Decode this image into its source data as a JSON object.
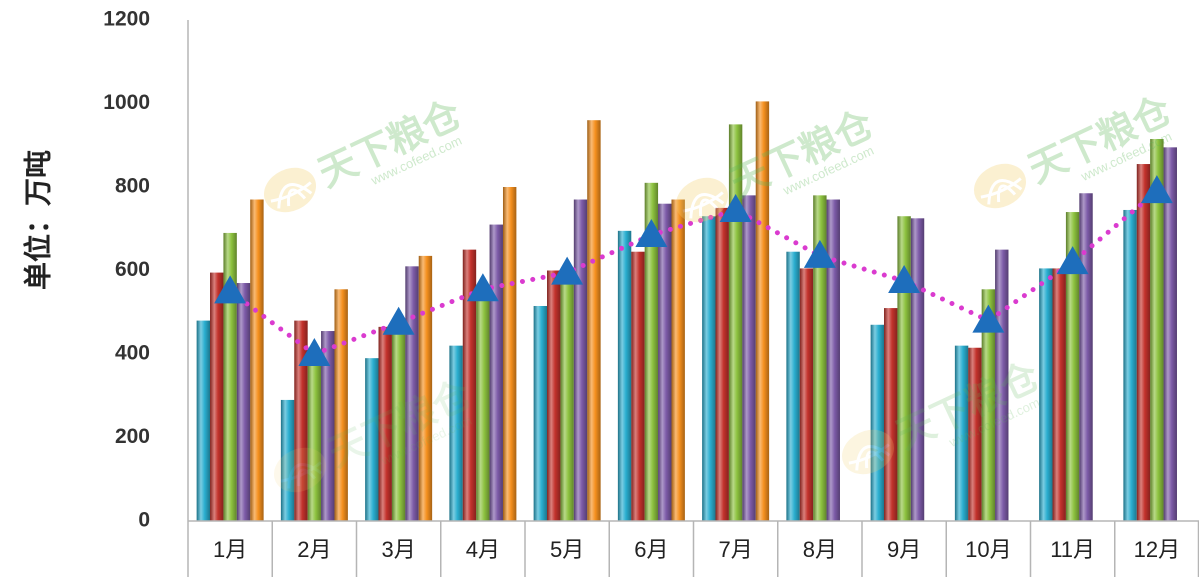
{
  "chart_data": {
    "type": "bar",
    "ylabel": "单位：万吨",
    "ylim": [
      0,
      1200
    ],
    "yticks": [
      0,
      200,
      400,
      600,
      800,
      1000,
      1200
    ],
    "categories": [
      "1月",
      "2月",
      "3月",
      "4月",
      "5月",
      "6月",
      "7月",
      "8月",
      "9月",
      "10月",
      "11月",
      "12月"
    ],
    "series": [
      {
        "type": "bar",
        "color": "#2aaed0",
        "values": [
          480,
          290,
          390,
          420,
          515,
          695,
          730,
          645,
          470,
          420,
          605,
          745
        ]
      },
      {
        "type": "bar",
        "color": "#c3322c",
        "values": [
          595,
          480,
          465,
          650,
          600,
          645,
          750,
          605,
          510,
          415,
          605,
          855
        ]
      },
      {
        "type": "bar",
        "color": "#8dc23f",
        "values": [
          690,
          385,
          460,
          545,
          590,
          810,
          950,
          780,
          730,
          555,
          740,
          915
        ]
      },
      {
        "type": "bar",
        "color": "#7d5ba8",
        "values": [
          570,
          455,
          610,
          710,
          770,
          760,
          780,
          770,
          725,
          650,
          785,
          895
        ]
      },
      {
        "type": "bar",
        "color": "#f5901e",
        "values": [
          770,
          555,
          635,
          800,
          960,
          770,
          1005,
          null,
          null,
          null,
          null,
          null
        ]
      },
      {
        "type": "line",
        "color": "#da3bcf",
        "marker_color": "#1e6ebc",
        "values": [
          550,
          400,
          475,
          555,
          595,
          685,
          745,
          635,
          575,
          480,
          620,
          790
        ]
      }
    ],
    "grid": false,
    "legend": "none"
  },
  "watermark": {
    "text": "天下粮仓",
    "url": "www.cofeed.com"
  }
}
